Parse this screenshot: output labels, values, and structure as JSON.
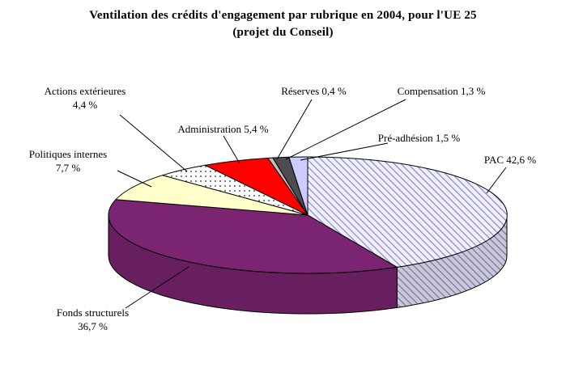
{
  "chart_data": {
    "type": "pie",
    "style": "3d-pie",
    "title": "Ventilation des crédits d'engagement par rubrique en 2004, pour l'UE 25",
    "subtitle": "(projet du Conseil)",
    "unit": "%",
    "total": 100,
    "start_angle_deg": 90,
    "direction": "clockwise",
    "legend": "none (labels with leader lines)",
    "patterns": {
      "hatch": {
        "bg": "#EFEFFF",
        "line": "#8080C0"
      },
      "dots": {
        "bg": "#FFFFFF",
        "dot": "#262626"
      }
    },
    "slices": [
      {
        "id": "pac",
        "name": "PAC",
        "value": 42.6,
        "lines": [
          "PAC 42,6 %"
        ],
        "fill": "pattern:hatch"
      },
      {
        "id": "fonds-structurels",
        "name": "Fonds structurels",
        "value": 36.7,
        "lines": [
          "Fonds structurels",
          "36,7 %"
        ],
        "fill": "#7B2572"
      },
      {
        "id": "politiques-internes",
        "name": "Politiques internes",
        "value": 7.7,
        "lines": [
          "Politiques internes",
          "7,7 %"
        ],
        "fill": "#FFFFCC"
      },
      {
        "id": "actions-exterieures",
        "name": "Actions extérieures",
        "value": 4.4,
        "lines": [
          "Actions extérieures",
          "4,4 %"
        ],
        "fill": "pattern:dots"
      },
      {
        "id": "administration",
        "name": "Administration",
        "value": 5.4,
        "lines": [
          "Administration 5,4 %"
        ],
        "fill": "#FF0000"
      },
      {
        "id": "reserves",
        "name": "Réserves",
        "value": 0.4,
        "lines": [
          "Réserves 0,4 %"
        ],
        "fill": "#C0C0C0"
      },
      {
        "id": "compensation",
        "name": "Compensation",
        "value": 1.3,
        "lines": [
          "Compensation 1,3 %"
        ],
        "fill": "#4D4D4D"
      },
      {
        "id": "pre-adhesion",
        "name": "Pré-adhésion",
        "value": 1.5,
        "lines": [
          "Pré-adhésion 1,5 %"
        ],
        "fill": "#CCCCFF"
      }
    ]
  }
}
